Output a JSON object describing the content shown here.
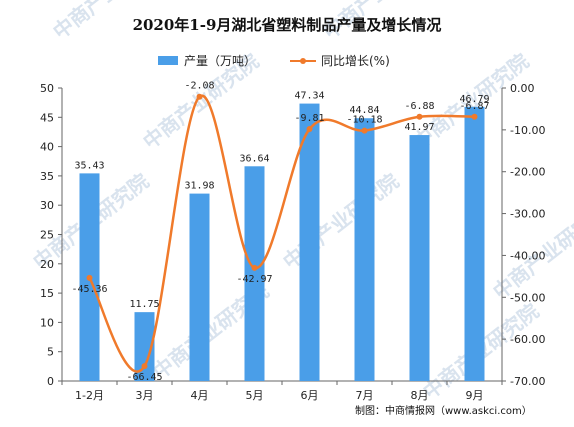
{
  "chart_data": {
    "type": "bar+line",
    "title": "2020年1-9月湖北省塑料制品产量及增长情况",
    "categories": [
      "1-2月",
      "3月",
      "4月",
      "5月",
      "6月",
      "7月",
      "8月",
      "9月"
    ],
    "series": [
      {
        "name": "产量（万吨）",
        "type": "bar",
        "axis": "left",
        "color": "#4a9ee8",
        "values": [
          35.43,
          11.75,
          31.98,
          36.64,
          47.34,
          44.84,
          41.97,
          46.79
        ]
      },
      {
        "name": "同比增长(%)",
        "type": "line",
        "axis": "right",
        "color": "#f07a2b",
        "values": [
          -45.36,
          -66.45,
          -2.08,
          -42.97,
          -9.81,
          -10.18,
          -6.88,
          -6.87
        ]
      }
    ],
    "left_axis": {
      "min": 0,
      "max": 50,
      "step": 5,
      "tick_labels": [
        "0",
        "5",
        "10",
        "15",
        "20",
        "25",
        "30",
        "35",
        "40",
        "45",
        "50"
      ]
    },
    "right_axis": {
      "min": -70,
      "max": 0,
      "step": 10,
      "tick_labels": [
        "-70.00",
        "-60.00",
        "-50.00",
        "-40.00",
        "-30.00",
        "-20.00",
        "-10.00",
        "0.00"
      ]
    },
    "legend_position": "top-center",
    "grid": false
  },
  "source_note": "制图：中商情报网（www.askci.com）",
  "watermark_text": "中商产业研究院"
}
